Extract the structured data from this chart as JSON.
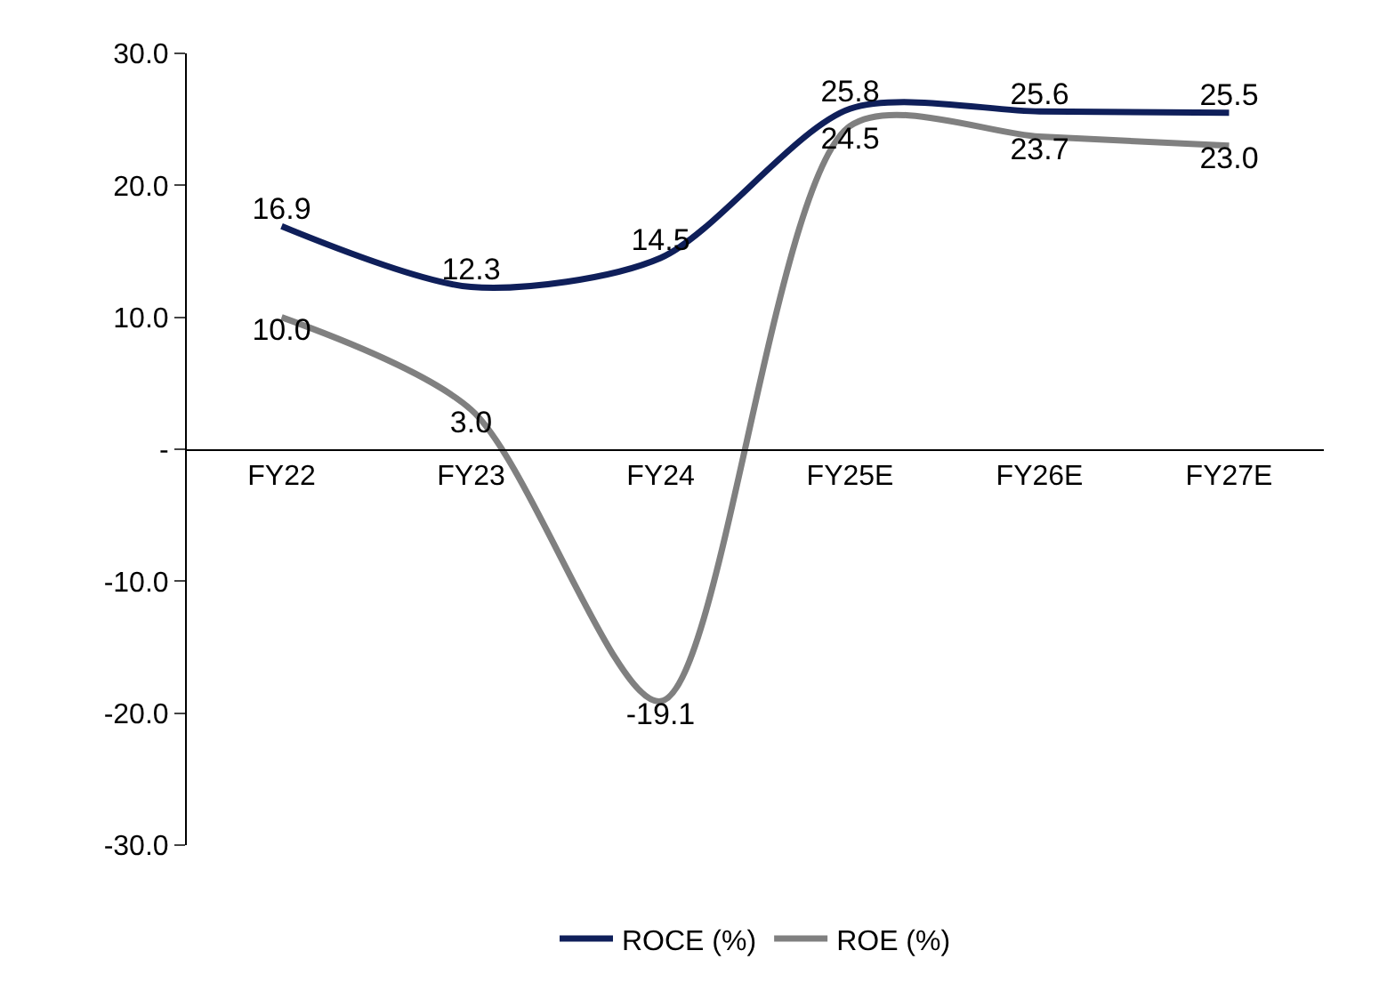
{
  "chart_data": {
    "type": "line",
    "categories": [
      "FY22",
      "FY23",
      "FY24",
      "FY25E",
      "FY26E",
      "FY27E"
    ],
    "series": [
      {
        "name": "ROCE (%)",
        "color": "#0f1f5a",
        "values": [
          16.9,
          12.3,
          14.5,
          25.8,
          25.6,
          25.5
        ],
        "value_labels": [
          "16.9",
          "12.3",
          "14.5",
          "25.8",
          "25.6",
          "25.5"
        ]
      },
      {
        "name": "ROE (%)",
        "color": "#808080",
        "values": [
          10.0,
          3.0,
          -19.1,
          24.5,
          23.7,
          23.0
        ],
        "value_labels": [
          "10.0",
          "3.0",
          "-19.1",
          "24.5",
          "23.7",
          "23.0"
        ]
      }
    ],
    "ylim": [
      -30,
      30
    ],
    "yticks": [
      {
        "value": -30,
        "label": "-30.0"
      },
      {
        "value": -20,
        "label": "-20.0"
      },
      {
        "value": -10,
        "label": "-10.0"
      },
      {
        "value": 0,
        "label": "-"
      },
      {
        "value": 10,
        "label": "10.0"
      },
      {
        "value": 20,
        "label": "20.0"
      },
      {
        "value": 30,
        "label": "30.0"
      }
    ],
    "legend": "bottom",
    "marker": "none",
    "line_style": "solid"
  }
}
